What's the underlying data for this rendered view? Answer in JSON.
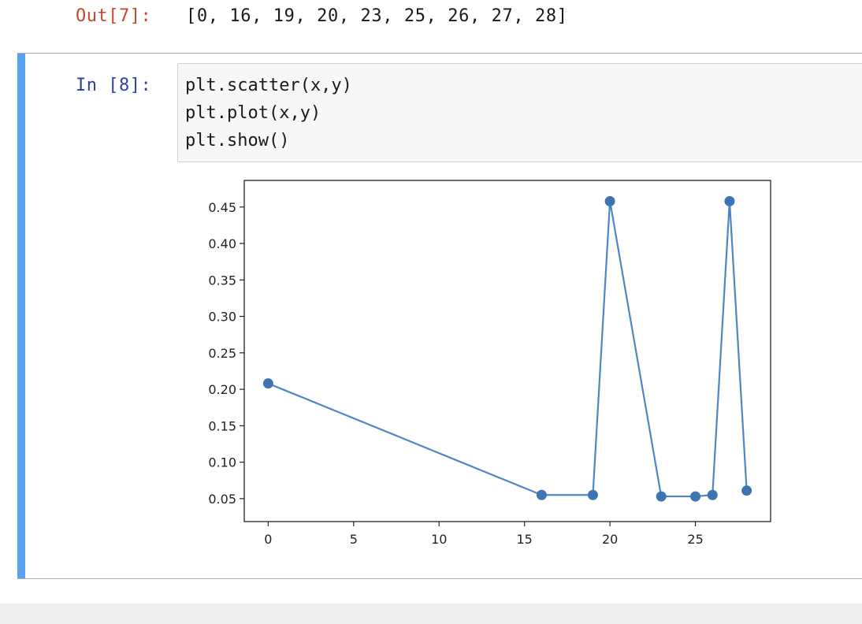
{
  "output_cell": {
    "prompt": "Out[7]:",
    "text": "[0, 16, 19, 20, 23, 25, 26, 27, 28]"
  },
  "input_cell": {
    "prompt": "In [8]:",
    "code_lines": [
      "plt.scatter(x,y)",
      "plt.plot(x,y)",
      "plt.show()"
    ]
  },
  "colors": {
    "series": "#3d74b1",
    "line": "#4f86c2",
    "cell_bar": "#5ba3ee",
    "out_prompt": "#c2492b",
    "in_prompt": "#30409f"
  },
  "chart_data": {
    "type": "scatter",
    "title": "",
    "xlabel": "",
    "ylabel": "",
    "x": [
      0,
      16,
      19,
      20,
      23,
      25,
      26,
      27,
      28
    ],
    "series": [
      {
        "values": [
          0.208,
          0.055,
          0.055,
          0.458,
          0.053,
          0.053,
          0.055,
          0.458,
          0.061
        ]
      }
    ],
    "connect_points": true,
    "xlim": [
      -1.4,
      29.4
    ],
    "ylim": [
      0.0185,
      0.4865
    ],
    "xticks": [
      0,
      5,
      10,
      15,
      20,
      25
    ],
    "xtick_labels": [
      "0",
      "5",
      "10",
      "15",
      "20",
      "25"
    ],
    "yticks": [
      0.05,
      0.1,
      0.15,
      0.2,
      0.25,
      0.3,
      0.35,
      0.4,
      0.45
    ],
    "ytick_labels": [
      "0.05",
      "0.10",
      "0.15",
      "0.20",
      "0.25",
      "0.30",
      "0.35",
      "0.40",
      "0.45"
    ],
    "grid": false,
    "legend": "none"
  }
}
